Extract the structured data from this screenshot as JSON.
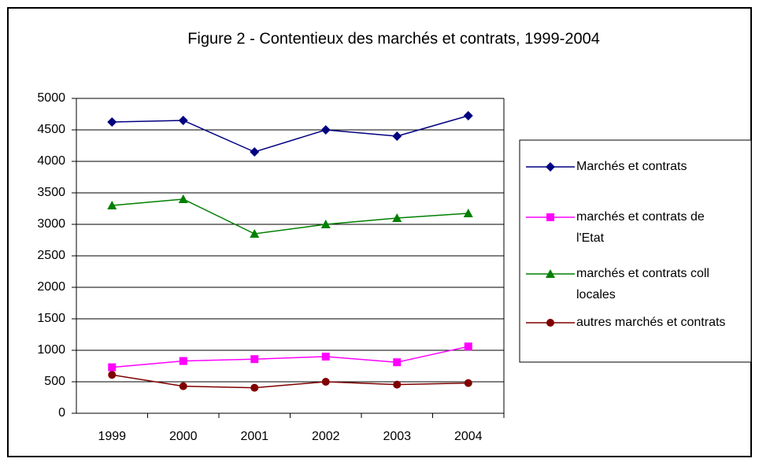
{
  "chart_data": {
    "type": "line",
    "title": "Figure 2 - Contentieux des marchés et contrats, 1999-2004",
    "categories": [
      "1999",
      "2000",
      "2001",
      "2002",
      "2003",
      "2004"
    ],
    "series": [
      {
        "name": "Marchés et contrats",
        "color": "#000080",
        "marker": "diamond",
        "values": [
          4625,
          4650,
          4150,
          4500,
          4400,
          4725
        ]
      },
      {
        "name": "marchés et contrats de l'Etat",
        "color": "#ff00ff",
        "marker": "square",
        "values": [
          730,
          830,
          860,
          900,
          810,
          1060
        ]
      },
      {
        "name": "marchés et contrats coll locales",
        "color": "#008000",
        "marker": "triangle",
        "values": [
          3300,
          3400,
          2850,
          3000,
          3100,
          3175
        ]
      },
      {
        "name": "autres marchés et contrats",
        "color": "#800000",
        "marker": "circle",
        "values": [
          610,
          430,
          405,
          500,
          455,
          480
        ]
      }
    ],
    "ylim": [
      0,
      5000
    ],
    "yticks": [
      0,
      500,
      1000,
      1500,
      2000,
      2500,
      3000,
      3500,
      4000,
      4500,
      5000
    ],
    "grid": true,
    "legend": "right"
  }
}
